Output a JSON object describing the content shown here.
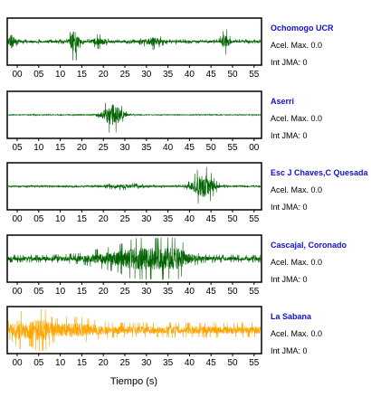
{
  "chart_data": {
    "type": "line",
    "xlabel": "Tiempo (s)",
    "panels": [
      {
        "station": "Ochomogo UCR",
        "acel_label": "Acel. Max.",
        "acel_value": "0.0",
        "int_label": "Int JMA:",
        "int_value": "0",
        "color": "#006400",
        "x_tick_labels": [
          "00",
          "05",
          "10",
          "15",
          "20",
          "25",
          "30",
          "35",
          "40",
          "45",
          "50",
          "55"
        ],
        "noise_level": 0.1,
        "bursts": [
          {
            "t": 0.8,
            "amp": 0.55,
            "width": 0.6
          },
          {
            "t": 15.4,
            "amp": 0.95,
            "width": 0.7
          },
          {
            "t": 21.0,
            "amp": 0.25,
            "width": 1.2
          },
          {
            "t": 33.5,
            "amp": 0.3,
            "width": 1.5
          },
          {
            "t": 50.3,
            "amp": 0.55,
            "width": 0.7
          }
        ]
      },
      {
        "station": "Aserri",
        "acel_label": "Acel. Max.",
        "acel_value": "0.0",
        "int_label": "Int JMA:",
        "int_value": "0",
        "color": "#006400",
        "x_tick_labels": [
          "05",
          "10",
          "15",
          "20",
          "25",
          "30",
          "35",
          "40",
          "45",
          "50",
          "55",
          "00"
        ],
        "noise_level": 0.03,
        "bursts": [
          {
            "t": 24.2,
            "amp": 0.95,
            "width": 1.6
          }
        ]
      },
      {
        "station": "Esc J Chaves,C Quesada",
        "acel_label": "Acel. Max.",
        "acel_value": "0.0",
        "int_label": "Int JMA:",
        "int_value": "0",
        "color": "#006400",
        "x_tick_labels": [
          "00",
          "05",
          "10",
          "15",
          "20",
          "25",
          "30",
          "35",
          "40",
          "45",
          "50",
          "55"
        ],
        "noise_level": 0.06,
        "bursts": [
          {
            "t": 27.0,
            "amp": 0.12,
            "width": 3.0
          },
          {
            "t": 45.2,
            "amp": 0.95,
            "width": 1.8
          }
        ]
      },
      {
        "station": "Cascajal, Coronado",
        "acel_label": "Acel. Max.",
        "acel_value": "0.0",
        "int_label": "Int JMA:",
        "int_value": "0",
        "color": "#006400",
        "x_tick_labels": [
          "00",
          "05",
          "10",
          "15",
          "20",
          "25",
          "30",
          "35",
          "40",
          "45",
          "50",
          "55"
        ],
        "noise_level": 0.18,
        "bursts": [
          {
            "t": 27.0,
            "amp": 0.45,
            "width": 6.0
          },
          {
            "t": 33.5,
            "amp": 0.9,
            "width": 3.5
          },
          {
            "t": 39.0,
            "amp": 0.55,
            "width": 2.5
          }
        ]
      },
      {
        "station": "La Sabana",
        "acel_label": "Acel. Max.",
        "acel_value": "0.0",
        "int_label": "Int JMA:",
        "int_value": "0",
        "color": "#ffa500",
        "x_tick_labels": [
          "00",
          "05",
          "10",
          "15",
          "20",
          "25",
          "30",
          "35",
          "40",
          "45",
          "50",
          "55"
        ],
        "noise_level": 0.35,
        "bursts": [
          {
            "t": 3.0,
            "amp": 0.55,
            "width": 1.5
          },
          {
            "t": 7.5,
            "amp": 0.75,
            "width": 1.5
          },
          {
            "t": 15.0,
            "amp": 0.3,
            "width": 4.0
          }
        ]
      }
    ]
  }
}
